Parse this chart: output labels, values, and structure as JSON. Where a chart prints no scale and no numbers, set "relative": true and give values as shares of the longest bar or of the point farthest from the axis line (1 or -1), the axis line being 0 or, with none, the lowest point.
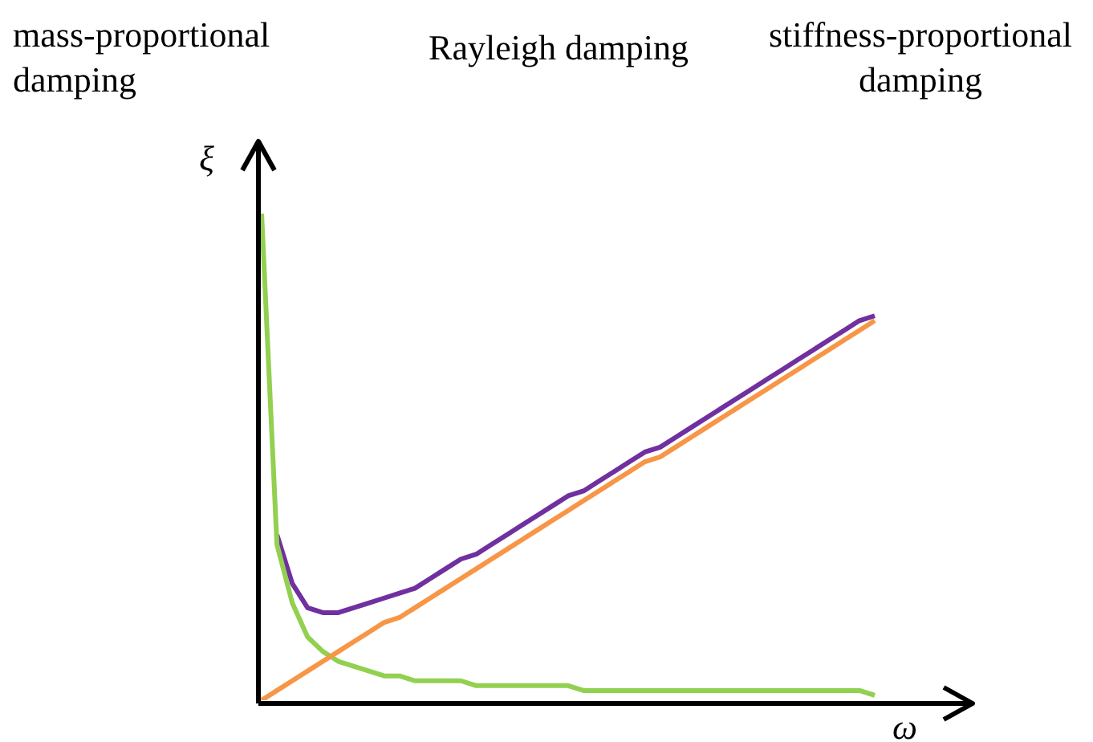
{
  "chart_data": {
    "type": "line",
    "relative": true,
    "xlabel": "ω",
    "ylabel": "ξ",
    "annotations": [
      "mass-proportional damping",
      "Rayleigh damping",
      "stiffness-proportional damping"
    ],
    "categories": [
      null,
      null,
      null,
      null,
      null,
      null,
      null,
      null,
      null,
      null,
      null,
      null,
      null,
      null,
      null,
      null,
      null,
      null,
      null,
      null,
      null,
      null,
      null,
      null,
      null,
      null,
      null,
      null,
      null,
      null,
      null,
      null,
      null,
      null,
      null,
      null,
      null,
      null,
      null,
      null,
      null
    ],
    "series": [
      {
        "color": "#f79646",
        "values": [
          0,
          0.02,
          0.04,
          0.06,
          0.08,
          0.1,
          0.12,
          0.14,
          0.16,
          0.17,
          0.19,
          0.21,
          0.23,
          0.25,
          0.27,
          0.29,
          0.31,
          0.33,
          0.35,
          0.37,
          0.39,
          0.41,
          0.43,
          0.45,
          0.47,
          0.49,
          0.5,
          0.52,
          0.54,
          0.56,
          0.58,
          0.6,
          0.62,
          0.64,
          0.66,
          0.68,
          0.7,
          0.72,
          0.74,
          0.76,
          0.78
        ]
      },
      {
        "color": "#92d050",
        "values": [
          1.0,
          0.32,
          0.2,
          0.13,
          0.1,
          0.08,
          0.07,
          0.06,
          0.05,
          0.05,
          0.04,
          0.04,
          0.04,
          0.04,
          0.03,
          0.03,
          0.03,
          0.03,
          0.03,
          0.03,
          0.03,
          0.02,
          0.02,
          0.02,
          0.02,
          0.02,
          0.02,
          0.02,
          0.02,
          0.02,
          0.02,
          0.02,
          0.02,
          0.02,
          0.02,
          0.02,
          0.02,
          0.02,
          0.02,
          0.02,
          0.01
        ]
      },
      {
        "color": "#7030a0",
        "values": [
          null,
          0.34,
          0.24,
          0.19,
          0.18,
          0.18,
          0.19,
          0.2,
          0.21,
          0.22,
          0.23,
          0.25,
          0.27,
          0.29,
          0.3,
          0.32,
          0.34,
          0.36,
          0.38,
          0.4,
          0.42,
          0.43,
          0.45,
          0.47,
          0.49,
          0.51,
          0.52,
          0.54,
          0.56,
          0.58,
          0.6,
          0.62,
          0.64,
          0.66,
          0.68,
          0.7,
          0.72,
          0.74,
          0.76,
          0.78,
          0.79
        ]
      }
    ],
    "legend": false
  }
}
